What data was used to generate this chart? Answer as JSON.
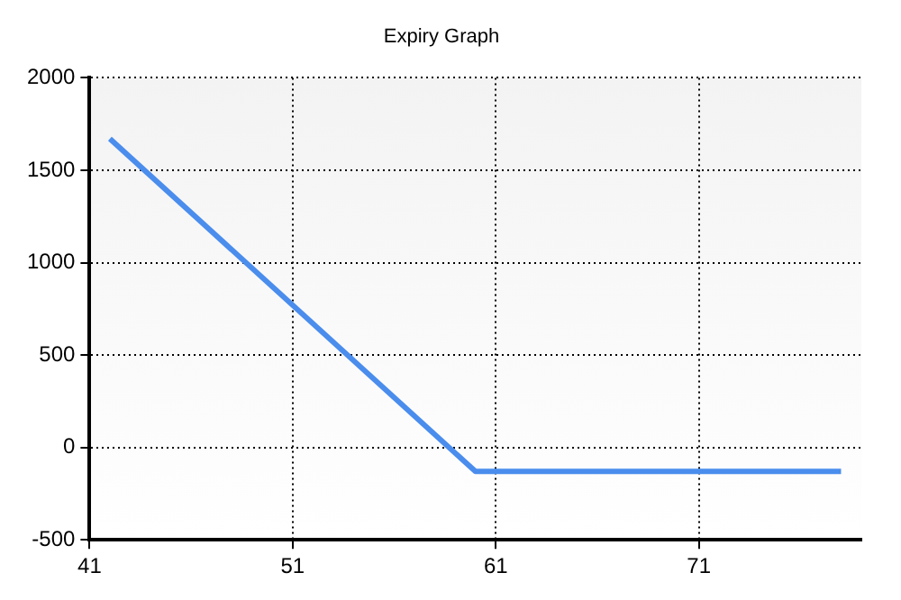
{
  "chart_data": {
    "type": "line",
    "title": "Expiry Graph",
    "x": [
      42,
      60,
      78
    ],
    "series": [
      {
        "color": "#4a8ded",
        "values": [
          1670,
          -130,
          -130
        ]
      }
    ],
    "xlim": [
      41,
      79
    ],
    "xticks": [
      41,
      51,
      61,
      71
    ],
    "ylim": [
      -500,
      2000
    ],
    "yticks": [
      -500,
      0,
      500,
      1000,
      1500,
      2000
    ],
    "grid": true,
    "legend": false,
    "marker": "none",
    "line_style": "solid"
  }
}
